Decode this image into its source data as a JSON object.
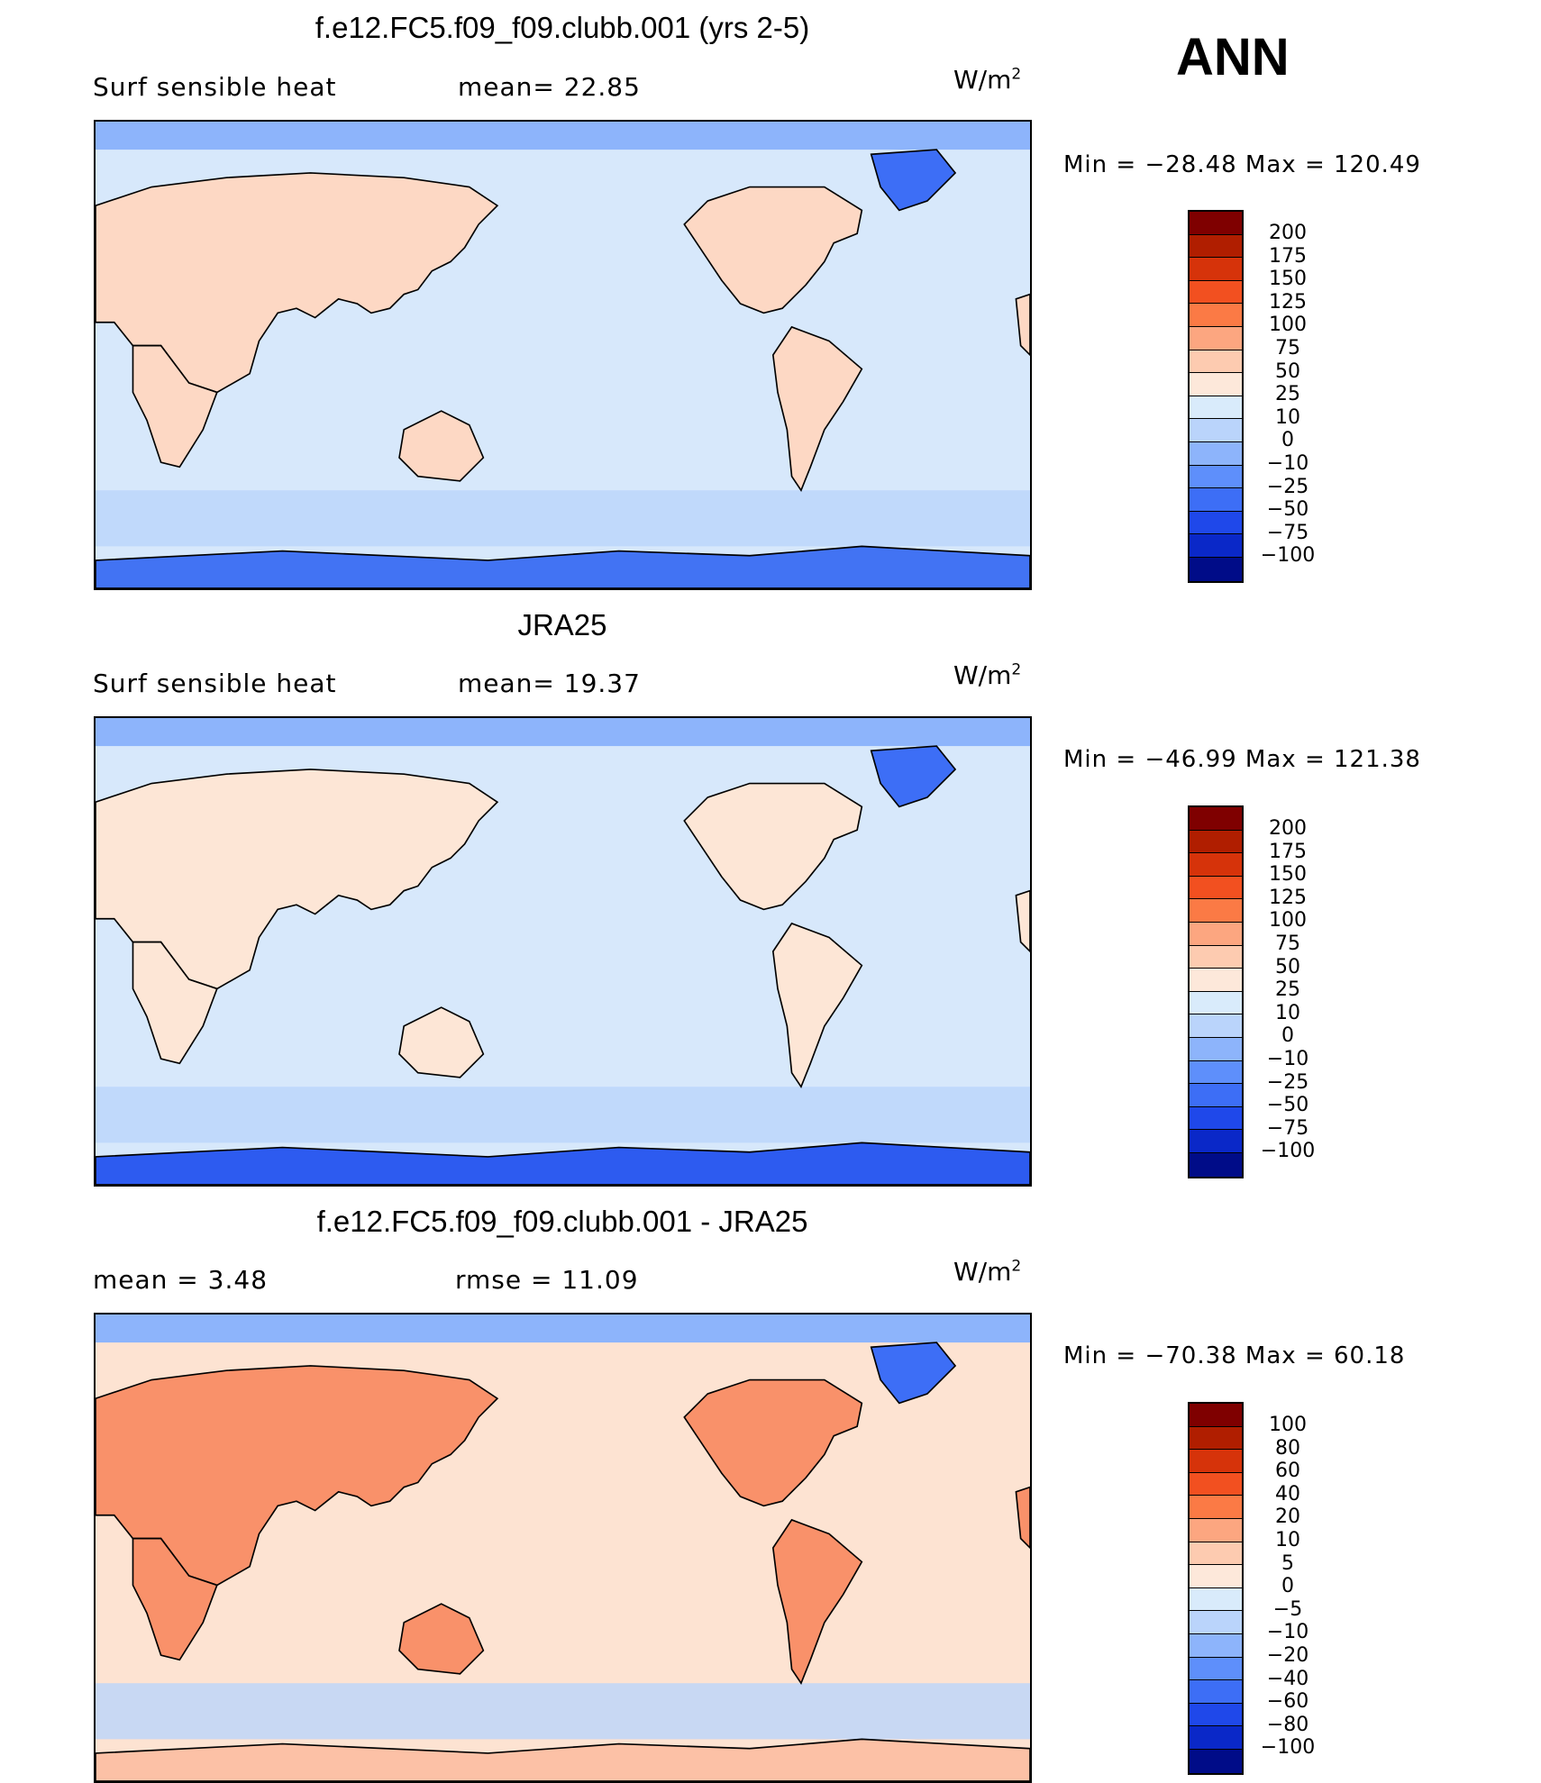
{
  "season": "ANN",
  "unit_text": "W/m",
  "unit_exp": "2",
  "panels": [
    {
      "title": "f.e12.FC5.f09_f09.clubb.001 (yrs 2-5)",
      "left_text": "Surf  sensible  heat",
      "stat1": "mean=   22.85",
      "minmax": "Min  =  −28.48  Max  =  120.49",
      "levels": [
        "200",
        "175",
        "150",
        "125",
        "100",
        "75",
        "50",
        "25",
        "10",
        "0",
        "−10",
        "−25",
        "−50",
        "−75",
        "−100"
      ],
      "colors": [
        "#7f0000",
        "#b01e00",
        "#d6330a",
        "#f25020",
        "#fb7a45",
        "#fca680",
        "#fdcbb0",
        "#fde8da",
        "#d9ebfb",
        "#bad4fb",
        "#8db4fb",
        "#5e8ffb",
        "#3d6ef6",
        "#1f48ea",
        "#0a28c8",
        "#000c88"
      ],
      "ocean": "#d7e8fb",
      "land": "#fdd8c4",
      "polar": "#4273f3"
    },
    {
      "title": "JRA25",
      "left_text": "Surf  sensible  heat",
      "stat1": "mean=   19.37",
      "minmax": "Min  =  −46.99  Max  =  121.38",
      "levels": [
        "200",
        "175",
        "150",
        "125",
        "100",
        "75",
        "50",
        "25",
        "10",
        "0",
        "−10",
        "−25",
        "−50",
        "−75",
        "−100"
      ],
      "colors": [
        "#7f0000",
        "#b01e00",
        "#d6330a",
        "#f25020",
        "#fb7a45",
        "#fca680",
        "#fdcbb0",
        "#fde8da",
        "#d9ebfb",
        "#bad4fb",
        "#8db4fb",
        "#5e8ffb",
        "#3d6ef6",
        "#1f48ea",
        "#0a28c8",
        "#000c88"
      ],
      "ocean": "#d7e8fb",
      "land": "#fde6d6",
      "polar": "#2d5bf0"
    },
    {
      "title": "f.e12.FC5.f09_f09.clubb.001 - JRA25",
      "left_text": "mean  =     3.48",
      "stat1": "rmse  =    11.09",
      "minmax": "Min  =  −70.38  Max  =    60.18",
      "levels": [
        "100",
        "80",
        "60",
        "40",
        "20",
        "10",
        "5",
        "0",
        "−5",
        "−10",
        "−20",
        "−40",
        "−60",
        "−80",
        "−100"
      ],
      "colors": [
        "#7f0000",
        "#b01e00",
        "#d6330a",
        "#f25020",
        "#fb7a45",
        "#fca680",
        "#fdcbb0",
        "#fde8da",
        "#d9ebfb",
        "#bad4fb",
        "#8db4fb",
        "#5e8ffb",
        "#3d6ef6",
        "#1f48ea",
        "#0a28c8",
        "#000c88"
      ],
      "ocean": "#fde3d2",
      "land": "#f9916a",
      "polar": "#fcc1a6"
    }
  ]
}
